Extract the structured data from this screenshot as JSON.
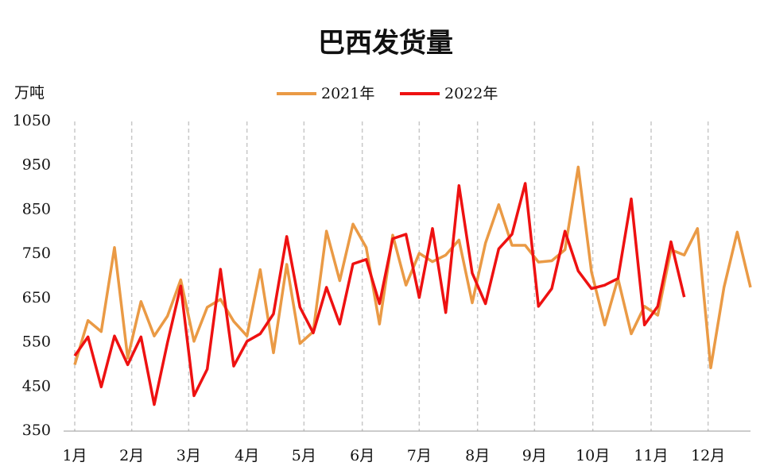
{
  "chart_data": {
    "type": "line",
    "title": "巴西发货量",
    "y_label": "万吨",
    "x": [
      1,
      2,
      3,
      4,
      5,
      6,
      7,
      8,
      9,
      10,
      11,
      12,
      13,
      14,
      15,
      16,
      17,
      18,
      19,
      20,
      21,
      22,
      23,
      24,
      25,
      26,
      27,
      28,
      29,
      30,
      31,
      32,
      33,
      34,
      35,
      36,
      37,
      38,
      39,
      40,
      41,
      42,
      43,
      44,
      45,
      46,
      47,
      48,
      49,
      50,
      51,
      52
    ],
    "xlim": [
      1,
      52
    ],
    "xticks": [
      {
        "value": 1,
        "label": "1月"
      },
      {
        "value": 5.3,
        "label": "2月"
      },
      {
        "value": 9.6,
        "label": "3月"
      },
      {
        "value": 14,
        "label": "4月"
      },
      {
        "value": 18.3,
        "label": "5月"
      },
      {
        "value": 22.7,
        "label": "6月"
      },
      {
        "value": 27,
        "label": "7月"
      },
      {
        "value": 31.4,
        "label": "8月"
      },
      {
        "value": 35.7,
        "label": "9月"
      },
      {
        "value": 40.1,
        "label": "10月"
      },
      {
        "value": 44.5,
        "label": "11月"
      },
      {
        "value": 48.8,
        "label": "12月"
      }
    ],
    "ylim": [
      350,
      1050
    ],
    "yticks": [
      350,
      450,
      550,
      650,
      750,
      850,
      950,
      1050
    ],
    "grid": true,
    "legend": "top",
    "series": [
      {
        "name": "2021年",
        "color": "#ea9a45",
        "values": [
          500,
          600,
          575,
          765,
          515,
          643,
          565,
          610,
          692,
          553,
          630,
          648,
          598,
          565,
          715,
          527,
          727,
          548,
          575,
          802,
          690,
          818,
          765,
          592,
          793,
          680,
          752,
          733,
          748,
          782,
          640,
          775,
          862,
          770,
          770,
          732,
          735,
          760,
          947,
          710,
          590,
          695,
          570,
          632,
          612,
          760,
          748,
          808,
          493,
          675,
          800,
          675
        ]
      },
      {
        "name": "2022年",
        "color": "#ee1111",
        "values": [
          520,
          563,
          450,
          565,
          500,
          563,
          410,
          550,
          678,
          430,
          490,
          716,
          497,
          553,
          570,
          615,
          790,
          630,
          572,
          675,
          592,
          728,
          738,
          638,
          785,
          795,
          652,
          808,
          618,
          905,
          707,
          638,
          762,
          795,
          910,
          632,
          672,
          802,
          712,
          672,
          680,
          695,
          875,
          590,
          632,
          778,
          653,
          null,
          null,
          null,
          null,
          null
        ]
      }
    ]
  }
}
